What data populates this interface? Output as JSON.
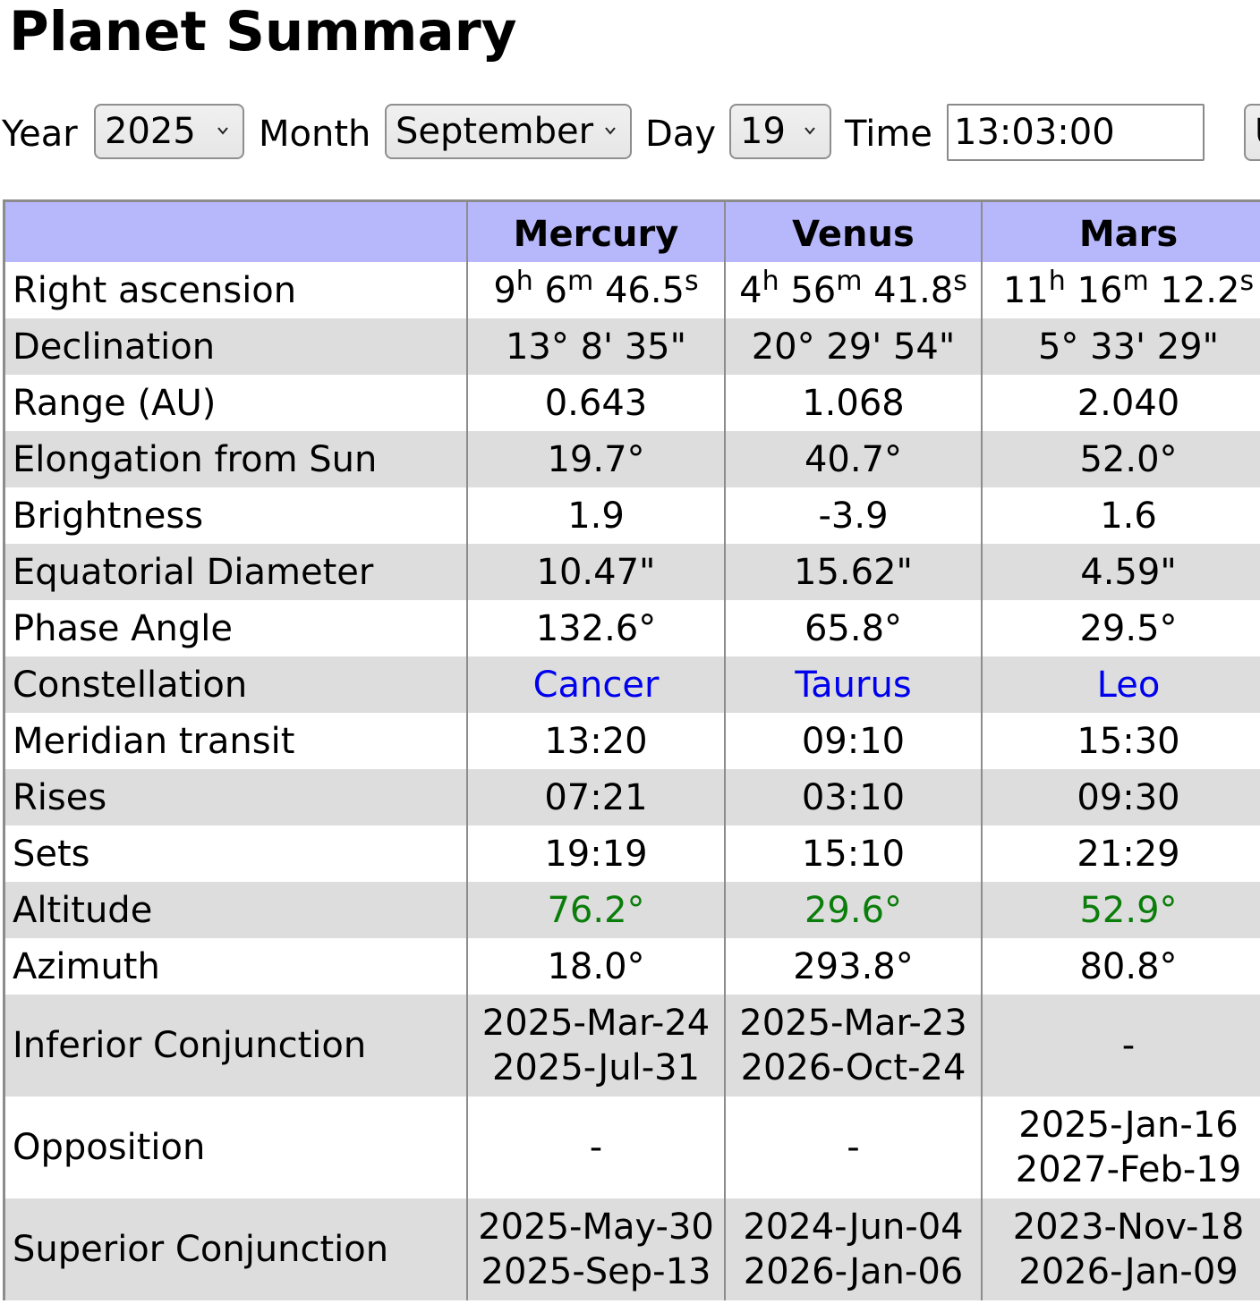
{
  "title": "Planet Summary",
  "controls": {
    "year_label": "Year",
    "year_value": "2025",
    "month_label": "Month",
    "month_value": "September",
    "day_label": "Day",
    "day_value": "19",
    "time_label": "Time",
    "time_value": "13:03:00",
    "extra_button_text": "U"
  },
  "table": {
    "columns": [
      "",
      "Mercury",
      "Venus",
      "Mars"
    ],
    "ra": {
      "label": "Right ascension",
      "mercury": {
        "h": "9",
        "m": "6",
        "s": "46.5"
      },
      "venus": {
        "h": "4",
        "m": "56",
        "s": "41.8"
      },
      "mars": {
        "h": "11",
        "m": "16",
        "s": "12.2"
      }
    },
    "rows": [
      {
        "label": "Declination",
        "mercury": "13° 8' 35\"",
        "venus": "20° 29' 54\"",
        "mars": "5° 33' 29\""
      },
      {
        "label": "Range (AU)",
        "mercury": "0.643",
        "venus": "1.068",
        "mars": "2.040"
      },
      {
        "label": "Elongation from Sun",
        "mercury": "19.7°",
        "venus": "40.7°",
        "mars": "52.0°"
      },
      {
        "label": "Brightness",
        "mercury": "1.9",
        "venus": "-3.9",
        "mars": "1.6"
      },
      {
        "label": "Equatorial Diameter",
        "mercury": "10.47\"",
        "venus": "15.62\"",
        "mars": "4.59\""
      },
      {
        "label": "Phase Angle",
        "mercury": "132.6°",
        "venus": "65.8°",
        "mars": "29.5°"
      },
      {
        "label": "Constellation",
        "mercury": "Cancer",
        "venus": "Taurus",
        "mars": "Leo"
      },
      {
        "label": "Meridian transit",
        "mercury": "13:20",
        "venus": "09:10",
        "mars": "15:30"
      },
      {
        "label": "Rises",
        "mercury": "07:21",
        "venus": "03:10",
        "mars": "09:30"
      },
      {
        "label": "Sets",
        "mercury": "19:19",
        "venus": "15:10",
        "mars": "21:29"
      },
      {
        "label": "Altitude",
        "mercury": "76.2°",
        "venus": "29.6°",
        "mars": "52.9°"
      },
      {
        "label": "Azimuth",
        "mercury": "18.0°",
        "venus": "293.8°",
        "mars": "80.8°"
      },
      {
        "label": "Inferior Conjunction",
        "mercury": [
          "2025-Mar-24",
          "2025-Jul-31"
        ],
        "venus": [
          "2025-Mar-23",
          "2026-Oct-24"
        ],
        "mars": [
          "-"
        ]
      },
      {
        "label": "Opposition",
        "mercury": [
          "-"
        ],
        "venus": [
          "-"
        ],
        "mars": [
          "2025-Jan-16",
          "2027-Feb-19"
        ]
      },
      {
        "label": "Superior Conjunction",
        "mercury": [
          "2025-May-30",
          "2025-Sep-13"
        ],
        "venus": [
          "2024-Jun-04",
          "2026-Jan-06"
        ],
        "mars": [
          "2023-Nov-18",
          "2026-Jan-09"
        ]
      }
    ]
  },
  "colors": {
    "header_bg": "#b7b7fb",
    "stripe_bg": "#dddddd",
    "link": "#0000ee",
    "altitude_positive": "#0a7d0a"
  }
}
